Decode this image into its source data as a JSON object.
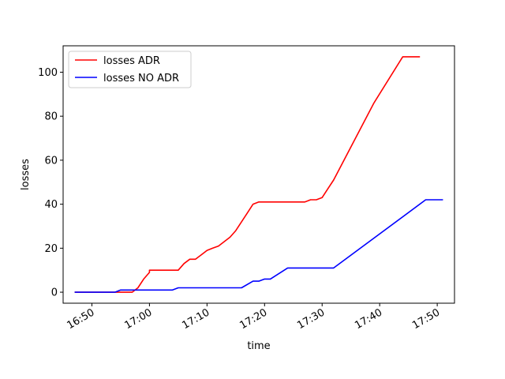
{
  "chart_data": {
    "type": "line",
    "title": "",
    "xlabel": "time",
    "ylabel": "losses",
    "xlim": [
      "16:45",
      "17:53"
    ],
    "ylim": [
      -5,
      112
    ],
    "x_ticks": [
      "16:50",
      "17:00",
      "17:10",
      "17:20",
      "17:30",
      "17:40",
      "17:50"
    ],
    "y_ticks": [
      0,
      20,
      40,
      60,
      80,
      100
    ],
    "grid": false,
    "legend_position": "top-left",
    "series": [
      {
        "name": "losses ADR",
        "color": "#ff0000",
        "points": [
          [
            "16:47",
            0
          ],
          [
            "16:55",
            0
          ],
          [
            "16:57",
            0
          ],
          [
            "16:58",
            2
          ],
          [
            "16:59",
            6
          ],
          [
            "17:00",
            9
          ],
          [
            "17:00",
            10
          ],
          [
            "17:05",
            10
          ],
          [
            "17:06",
            13
          ],
          [
            "17:07",
            15
          ],
          [
            "17:08",
            15
          ],
          [
            "17:09",
            17
          ],
          [
            "17:10",
            19
          ],
          [
            "17:11",
            20
          ],
          [
            "17:12",
            21
          ],
          [
            "17:13",
            23
          ],
          [
            "17:14",
            25
          ],
          [
            "17:15",
            28
          ],
          [
            "17:16",
            32
          ],
          [
            "17:17",
            36
          ],
          [
            "17:18",
            40
          ],
          [
            "17:19",
            41
          ],
          [
            "17:27",
            41
          ],
          [
            "17:28",
            42
          ],
          [
            "17:29",
            42
          ],
          [
            "17:30",
            43
          ],
          [
            "17:31",
            47
          ],
          [
            "17:32",
            51
          ],
          [
            "17:39",
            86
          ],
          [
            "17:44",
            107
          ],
          [
            "17:47",
            107
          ]
        ]
      },
      {
        "name": "losses NO ADR",
        "color": "#0000ff",
        "points": [
          [
            "16:47",
            0
          ],
          [
            "16:54",
            0
          ],
          [
            "16:55",
            1
          ],
          [
            "17:04",
            1
          ],
          [
            "17:05",
            2
          ],
          [
            "17:16",
            2
          ],
          [
            "17:18",
            5
          ],
          [
            "17:19",
            5
          ],
          [
            "17:20",
            6
          ],
          [
            "17:21",
            6
          ],
          [
            "17:24",
            11
          ],
          [
            "17:32",
            11
          ],
          [
            "17:48",
            42
          ],
          [
            "17:51",
            42
          ]
        ]
      }
    ]
  }
}
